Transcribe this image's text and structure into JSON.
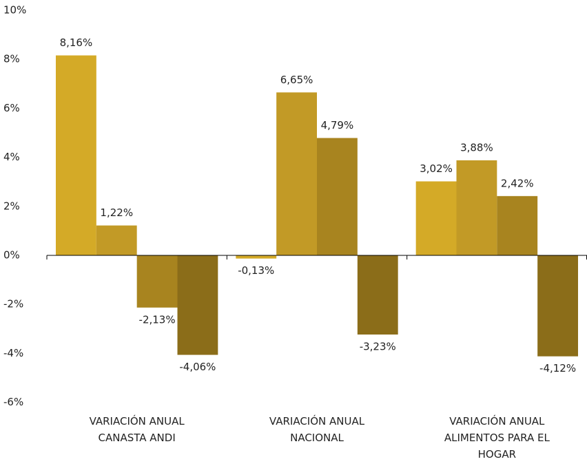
{
  "chart_data": {
    "type": "bar",
    "categories": [
      "VARIACIÓN ANUAL CANASTA ANDI",
      "VARIACIÓN ANUAL NACIONAL",
      "VARIACIÓN ANUAL ALIMENTOS PARA EL HOGAR"
    ],
    "series": [
      {
        "color": "#d4aa27",
        "values": [
          8.16,
          -0.13,
          3.02
        ],
        "value_labels": [
          "8,16%",
          "-0,13%",
          "3,02%"
        ]
      },
      {
        "color": "#c29a26",
        "values": [
          1.22,
          6.65,
          3.88
        ],
        "value_labels": [
          "1,22%",
          "6,65%",
          "3,88%"
        ]
      },
      {
        "color": "#a8841f",
        "values": [
          -2.13,
          4.79,
          2.42
        ],
        "value_labels": [
          "-2,13%",
          "4,79%",
          "2,42%"
        ]
      },
      {
        "color": "#8b6d19",
        "values": [
          -4.06,
          -3.23,
          -4.12
        ],
        "value_labels": [
          "-4,06%",
          "-3,23%",
          "-4,12%"
        ]
      }
    ],
    "ylim": [
      -6,
      10
    ],
    "yticks": [
      {
        "value": -6,
        "label": "-6%"
      },
      {
        "value": -4,
        "label": "-4%"
      },
      {
        "value": -2,
        "label": "-2%"
      },
      {
        "value": 0,
        "label": "0%"
      },
      {
        "value": 2,
        "label": "2%"
      },
      {
        "value": 4,
        "label": "4%"
      },
      {
        "value": 6,
        "label": "6%"
      },
      {
        "value": 8,
        "label": "8%"
      },
      {
        "value": 10,
        "label": "10%"
      }
    ],
    "grid": false
  }
}
